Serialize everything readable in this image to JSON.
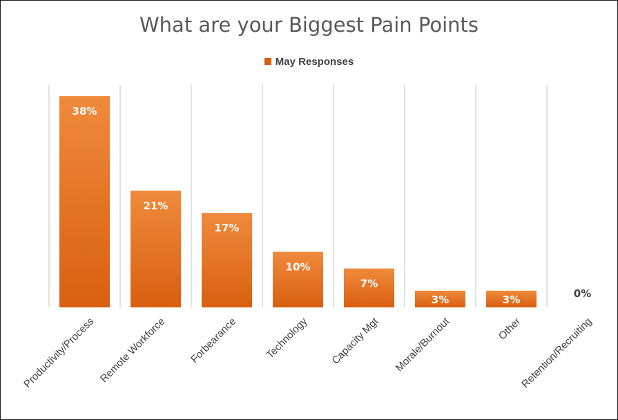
{
  "chart_data": {
    "type": "bar",
    "title": "What are your Biggest Pain Points",
    "categories": [
      "Productivity/Process",
      "Remote Workforce",
      "Forbearance",
      "Technology",
      "Capacity Mgt",
      "Morale/Burnout",
      "Other",
      "Retention/Recruiting"
    ],
    "series": [
      {
        "name": "May Responses",
        "values": [
          38,
          21,
          17,
          10,
          7,
          3,
          3,
          0
        ]
      }
    ],
    "data_labels": [
      "38%",
      "21%",
      "17%",
      "10%",
      "7%",
      "3%",
      "3%",
      "0%"
    ],
    "ylim": [
      0,
      40
    ],
    "grid": "vertical category separators",
    "legend_position": "top",
    "colors": {
      "bar_top": "#ef8a3c",
      "bar_bottom": "#d95f10",
      "label_inside": "#ffffff",
      "label_outside": "#404040",
      "grid": "#d9d9d9"
    }
  }
}
